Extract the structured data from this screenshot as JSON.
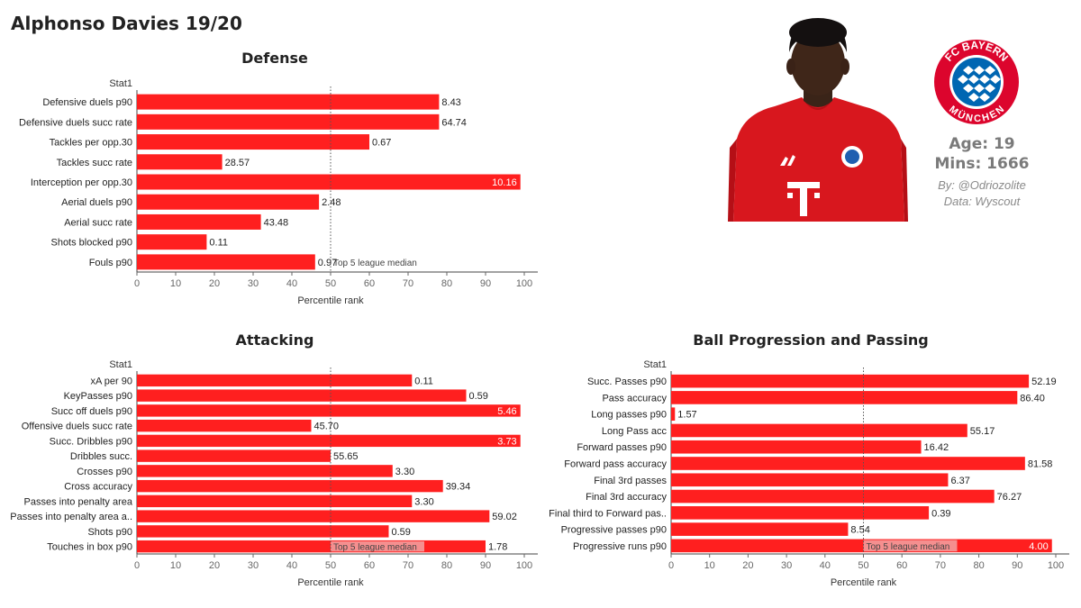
{
  "title": "Alphonso Davies 19/20",
  "player": {
    "age_label": "Age: 19",
    "mins_label": "Mins: 1666",
    "byline": "By: @Odriozolite",
    "source": "Data: Wyscout",
    "club_logo_text_top": "FC BAYERN",
    "club_logo_text_bottom": "MÜNCHEN",
    "kit_color": "#d8171e"
  },
  "colors": {
    "bar": "#ff1f1f",
    "median_band": "#f3a3a3"
  },
  "chart_data": [
    {
      "type": "bar",
      "orientation": "horizontal",
      "title": "Defense",
      "row_header": "Stat1",
      "xlabel": "Percentile rank",
      "xlim": [
        0,
        100
      ],
      "xticks": [
        0,
        10,
        20,
        30,
        40,
        50,
        60,
        70,
        80,
        90,
        100
      ],
      "median": 50,
      "median_label": "Top 5 league median",
      "categories": [
        "Defensive duels p90",
        "Defensive duels succ rate",
        "Tackles per opp.30",
        "Tackles succ rate",
        "Interception per opp.30",
        "Aerial duels p90",
        "Aerial succ rate",
        "Shots blocked p90",
        "Fouls p90"
      ],
      "values": [
        78,
        78,
        60,
        22,
        99,
        47,
        32,
        18,
        46
      ],
      "labels": [
        "8.43",
        "64.74",
        "0.67",
        "28.57",
        "10.16",
        "2.48",
        "43.48",
        "0.11",
        "0.97"
      ]
    },
    {
      "type": "bar",
      "orientation": "horizontal",
      "title": "Attacking",
      "row_header": "Stat1",
      "xlabel": "Percentile rank",
      "xlim": [
        0,
        100
      ],
      "xticks": [
        0,
        10,
        20,
        30,
        40,
        50,
        60,
        70,
        80,
        90,
        100
      ],
      "median": 50,
      "median_label": "Top 5 league median",
      "categories": [
        "xA per 90",
        "KeyPasses p90",
        "Succ off duels p90",
        "Offensive duels succ rate",
        "Succ. Dribbles p90",
        "Dribbles succ.",
        "Crosses p90",
        "Cross accuracy",
        "Passes into penalty area",
        "Passes into penalty area a..",
        "Shots p90",
        "Touches in box p90"
      ],
      "values": [
        71,
        85,
        99,
        45,
        99,
        50,
        66,
        79,
        71,
        91,
        65,
        90
      ],
      "labels": [
        "0.11",
        "0.59",
        "5.46",
        "45.70",
        "3.73",
        "55.65",
        "3.30",
        "39.34",
        "3.30",
        "59.02",
        "0.59",
        "1.78"
      ]
    },
    {
      "type": "bar",
      "orientation": "horizontal",
      "title": "Ball Progression and Passing",
      "row_header": "Stat1",
      "xlabel": "Percentile rank",
      "xlim": [
        0,
        100
      ],
      "xticks": [
        0,
        10,
        20,
        30,
        40,
        50,
        60,
        70,
        80,
        90,
        100
      ],
      "median": 50,
      "median_label": "Top 5 league median",
      "categories": [
        "Succ. Passes p90",
        "Pass accuracy",
        "Long passes p90",
        "Long Pass acc",
        "Forward passes p90",
        "Forward pass accuracy",
        "Final 3rd passes",
        "Final 3rd accuracy",
        "Final third to Forward pas..",
        "Progressive passes p90",
        "Progressive runs p90"
      ],
      "values": [
        93,
        90,
        1,
        77,
        65,
        92,
        72,
        84,
        67,
        46,
        99
      ],
      "labels": [
        "52.19",
        "86.40",
        "1.57",
        "55.17",
        "16.42",
        "81.58",
        "6.37",
        "76.27",
        "0.39",
        "8.54",
        "4.00"
      ]
    }
  ]
}
